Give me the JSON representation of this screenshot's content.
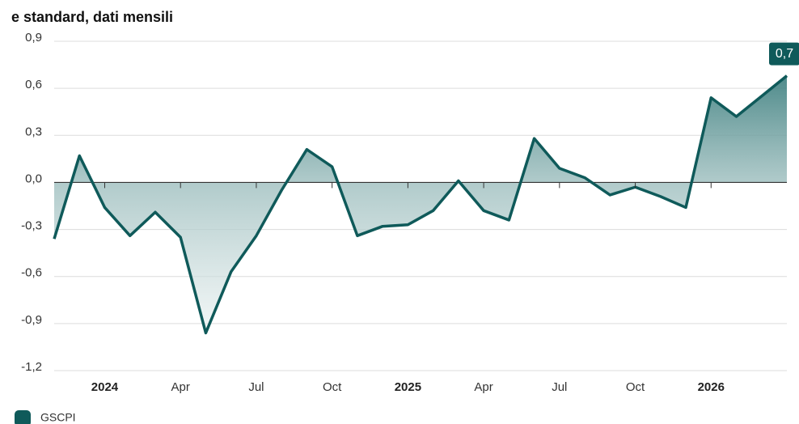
{
  "chart_data": {
    "type": "area",
    "subtitle": "e standard, dati mensili",
    "categories": [
      null,
      null,
      "2024",
      null,
      null,
      "Apr",
      null,
      null,
      "Jul",
      null,
      null,
      "Oct",
      null,
      null,
      "2025",
      null,
      null,
      "Apr",
      null,
      null,
      "Jul",
      null,
      null,
      "Oct",
      null,
      null,
      "2026",
      null,
      null,
      null
    ],
    "series": [
      {
        "name": "GSCPI",
        "color": "#0f5a5a",
        "values": [
          -0.36,
          0.17,
          -0.16,
          -0.34,
          -0.19,
          -0.35,
          -0.96,
          -0.57,
          -0.34,
          -0.05,
          0.21,
          0.1,
          -0.34,
          -0.28,
          -0.27,
          -0.18,
          0.01,
          -0.18,
          -0.24,
          0.28,
          0.09,
          0.03,
          -0.08,
          -0.03,
          -0.09,
          -0.16,
          0.54,
          0.42,
          0.55,
          0.68
        ],
        "value_labels": [
          null,
          null,
          null,
          null,
          null,
          null,
          null,
          null,
          null,
          null,
          null,
          null,
          null,
          null,
          null,
          null,
          null,
          null,
          null,
          null,
          null,
          null,
          null,
          null,
          null,
          null,
          null,
          null,
          null,
          "0,7"
        ]
      }
    ],
    "ylim": [
      -1.2,
      0.9
    ],
    "yticks": [
      {
        "value": -1.2,
        "label": "-1,2"
      },
      {
        "value": -0.9,
        "label": "-0,9"
      },
      {
        "value": -0.6,
        "label": "-0,6"
      },
      {
        "value": -0.3,
        "label": "-0,3"
      },
      {
        "value": 0,
        "label": "0,0"
      },
      {
        "value": 0.3,
        "label": "0,3"
      },
      {
        "value": 0.6,
        "label": "0,6"
      },
      {
        "value": 0.9,
        "label": "0,9"
      }
    ],
    "grid": true,
    "legend": "bottom-left"
  }
}
